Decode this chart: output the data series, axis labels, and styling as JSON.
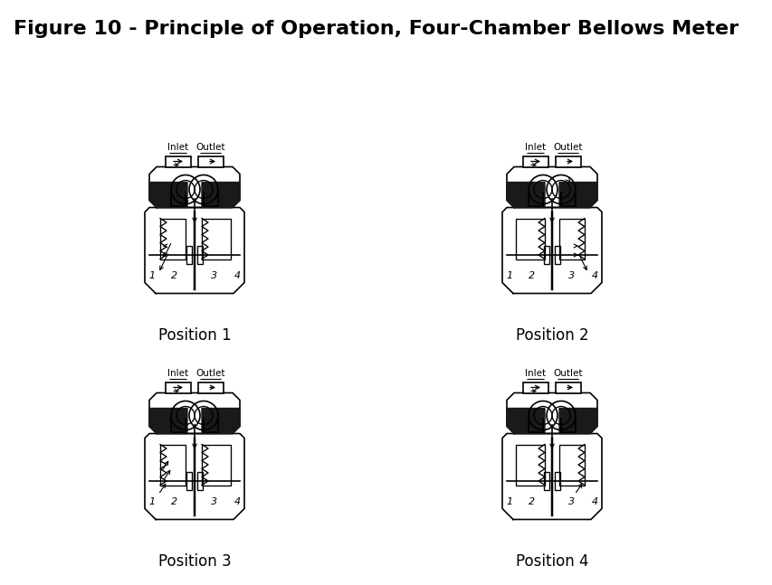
{
  "title": "Figure 10 - Principle of Operation, Four-Chamber Bellows Meter",
  "title_fontsize": 16,
  "title_color": "#000000",
  "background_color": "#ffffff",
  "positions": [
    "Position 1",
    "Position 2",
    "Position 3",
    "Position 4"
  ],
  "label_fontsize": 12,
  "chamber_numbers": [
    "1",
    "2",
    "3",
    "4"
  ],
  "inlet_label": "Inlet",
  "outlet_label": "Outlet"
}
